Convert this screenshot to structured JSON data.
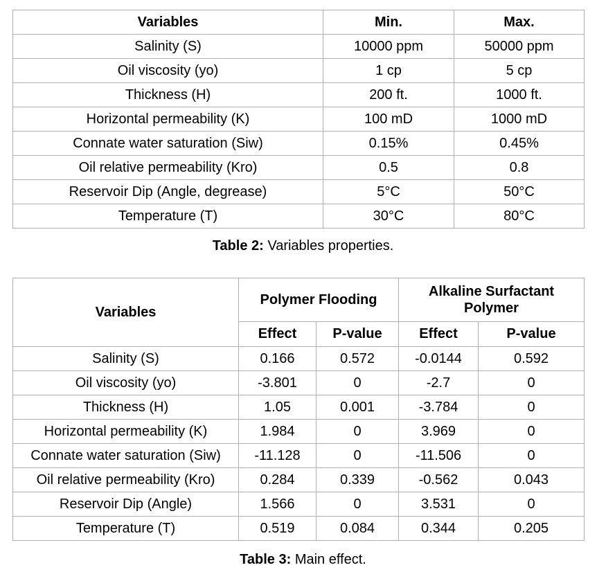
{
  "table_2": {
    "columns": [
      "Variables",
      "Min.",
      "Max."
    ],
    "rows": [
      [
        "Salinity (S)",
        "10000 ppm",
        "50000 ppm"
      ],
      [
        "Oil viscosity (yo)",
        "1 cp",
        "5 cp"
      ],
      [
        "Thickness (H)",
        "200 ft.",
        "1000 ft."
      ],
      [
        "Horizontal permeability (K)",
        "100 mD",
        "1000 mD"
      ],
      [
        "Connate water saturation (Siw)",
        "0.15%",
        "0.45%"
      ],
      [
        "Oil relative permeability (Kro)",
        "0.5",
        "0.8"
      ],
      [
        "Reservoir Dip  (Angle, degrease)",
        "5°C",
        "50°C"
      ],
      [
        "Temperature (T)",
        "30°C",
        "80°C"
      ]
    ],
    "caption": {
      "label": "Table 2:",
      "text": "Variables properties."
    }
  },
  "table_3": {
    "header": {
      "variables": "Variables",
      "groups": [
        "Polymer Flooding",
        "Alkaline Surfactant Polymer"
      ],
      "subcolumns": [
        "Effect",
        "P-value",
        "Effect",
        "P-value"
      ]
    },
    "rows": [
      [
        "Salinity (S)",
        "0.166",
        "0.572",
        "-0.0144",
        "0.592"
      ],
      [
        "Oil viscosity (yo)",
        "-3.801",
        "0",
        "-2.7",
        "0"
      ],
      [
        "Thickness (H)",
        "1.05",
        "0.001",
        "-3.784",
        "0"
      ],
      [
        "Horizontal permeability (K)",
        "1.984",
        "0",
        "3.969",
        "0"
      ],
      [
        "Connate water saturation (Siw)",
        "-11.128",
        "0",
        "-11.506",
        "0"
      ],
      [
        "Oil relative permeability (Kro)",
        "0.284",
        "0.339",
        "-0.562",
        "0.043"
      ],
      [
        "Reservoir Dip (Angle)",
        "1.566",
        "0",
        "3.531",
        "0"
      ],
      [
        "Temperature (T)",
        "0.519",
        "0.084",
        "0.344",
        "0.205"
      ]
    ],
    "caption": {
      "label": "Table 3:",
      "text": "Main effect."
    }
  }
}
